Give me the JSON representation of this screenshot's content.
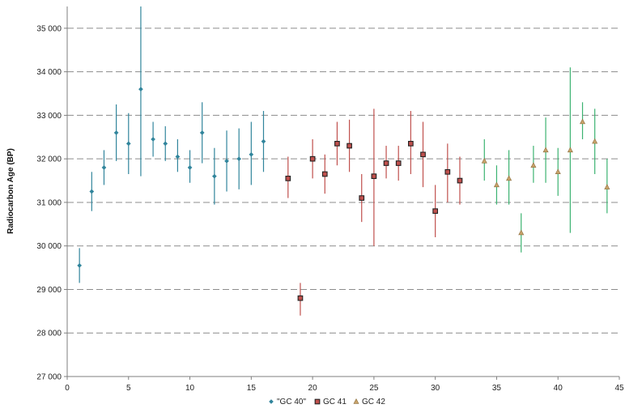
{
  "chart_data": {
    "type": "scatter",
    "ylabel": "Radiocarbon Age (BP)",
    "xlabel": "",
    "xlim": [
      0,
      45
    ],
    "ylim": [
      27000,
      35500
    ],
    "x_ticks": [
      0,
      5,
      10,
      15,
      20,
      25,
      30,
      35,
      40,
      45
    ],
    "x_tick_labels": [
      "0",
      "5",
      "10",
      "15",
      "20",
      "25",
      "30",
      "35",
      "40",
      "45"
    ],
    "y_ticks": [
      27000,
      28000,
      29000,
      30000,
      31000,
      32000,
      33000,
      34000,
      35000
    ],
    "y_tick_labels": [
      "27 000",
      "28 000",
      "29 000",
      "30 000",
      "31 000",
      "32 000",
      "33 000",
      "34 000",
      "35 000"
    ],
    "grid": "horizontal-dashed",
    "legend_position": "bottom",
    "series": [
      {
        "name": "\"GC 40\"",
        "color": "#31859c",
        "marker": "diamond",
        "points": [
          {
            "x": 1,
            "y": 29550,
            "low": 29150,
            "high": 29950
          },
          {
            "x": 2,
            "y": 31250,
            "low": 30800,
            "high": 31700
          },
          {
            "x": 3,
            "y": 31800,
            "low": 31400,
            "high": 32200
          },
          {
            "x": 4,
            "y": 32600,
            "low": 31950,
            "high": 33250
          },
          {
            "x": 5,
            "y": 32350,
            "low": 31650,
            "high": 33050
          },
          {
            "x": 6,
            "y": 33600,
            "low": 31600,
            "high": 35600
          },
          {
            "x": 7,
            "y": 32450,
            "low": 32050,
            "high": 32850
          },
          {
            "x": 8,
            "y": 32350,
            "low": 31950,
            "high": 32750
          },
          {
            "x": 9,
            "y": 32050,
            "low": 31700,
            "high": 32450
          },
          {
            "x": 10,
            "y": 31800,
            "low": 31450,
            "high": 32200
          },
          {
            "x": 11,
            "y": 32600,
            "low": 31900,
            "high": 33300
          },
          {
            "x": 12,
            "y": 31600,
            "low": 30950,
            "high": 32250
          },
          {
            "x": 13,
            "y": 31950,
            "low": 31250,
            "high": 32650
          },
          {
            "x": 14,
            "y": 32000,
            "low": 31300,
            "high": 32700
          },
          {
            "x": 15,
            "y": 32100,
            "low": 31400,
            "high": 32850
          },
          {
            "x": 16,
            "y": 32400,
            "low": 31700,
            "high": 33100
          }
        ]
      },
      {
        "name": "GC 41",
        "color": "#c0504d",
        "marker": "square",
        "points": [
          {
            "x": 18,
            "y": 31550,
            "low": 31100,
            "high": 32050
          },
          {
            "x": 19,
            "y": 28800,
            "low": 28400,
            "high": 29150
          },
          {
            "x": 20,
            "y": 32000,
            "low": 31550,
            "high": 32450
          },
          {
            "x": 21,
            "y": 31650,
            "low": 31200,
            "high": 32100
          },
          {
            "x": 22,
            "y": 32350,
            "low": 31850,
            "high": 32850
          },
          {
            "x": 23,
            "y": 32300,
            "low": 31700,
            "high": 32900
          },
          {
            "x": 24,
            "y": 31100,
            "low": 30550,
            "high": 31650
          },
          {
            "x": 25,
            "y": 31600,
            "low": 30000,
            "high": 33150
          },
          {
            "x": 26,
            "y": 31900,
            "low": 31550,
            "high": 32300
          },
          {
            "x": 27,
            "y": 31900,
            "low": 31500,
            "high": 32300
          },
          {
            "x": 28,
            "y": 32350,
            "low": 31650,
            "high": 33100
          },
          {
            "x": 29,
            "y": 32100,
            "low": 31350,
            "high": 32850
          },
          {
            "x": 30,
            "y": 30800,
            "low": 30200,
            "high": 31400
          },
          {
            "x": 31,
            "y": 31700,
            "low": 31000,
            "high": 32350
          },
          {
            "x": 32,
            "y": 31500,
            "low": 30950,
            "high": 32050
          }
        ]
      },
      {
        "name": "GC 42",
        "color": "#3cb371",
        "marker_fill": "#c9a36b",
        "marker": "triangle",
        "points": [
          {
            "x": 34,
            "y": 31950,
            "low": 31500,
            "high": 32450
          },
          {
            "x": 35,
            "y": 31400,
            "low": 30950,
            "high": 31850
          },
          {
            "x": 36,
            "y": 31550,
            "low": 30950,
            "high": 32200
          },
          {
            "x": 37,
            "y": 30300,
            "low": 29850,
            "high": 30750
          },
          {
            "x": 38,
            "y": 31850,
            "low": 31450,
            "high": 32300
          },
          {
            "x": 39,
            "y": 32200,
            "low": 31450,
            "high": 32950
          },
          {
            "x": 40,
            "y": 31700,
            "low": 31150,
            "high": 32250
          },
          {
            "x": 41,
            "y": 32200,
            "low": 30300,
            "high": 34100
          },
          {
            "x": 42,
            "y": 32850,
            "low": 32450,
            "high": 33300
          },
          {
            "x": 43,
            "y": 32400,
            "low": 31650,
            "high": 33150
          },
          {
            "x": 44,
            "y": 31350,
            "low": 30750,
            "high": 32000
          }
        ]
      }
    ]
  }
}
